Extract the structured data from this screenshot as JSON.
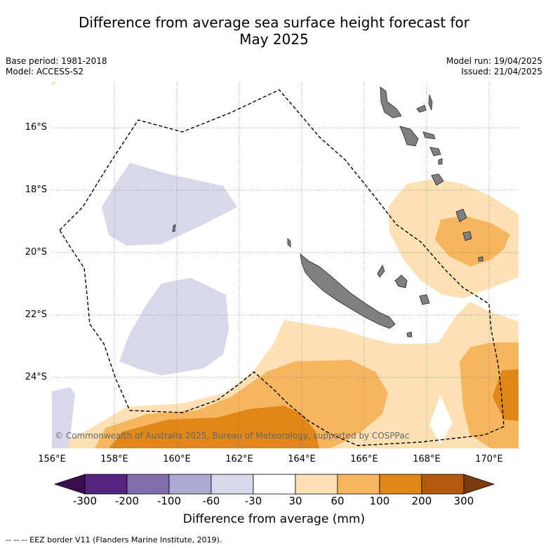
{
  "title_line1": "Difference from average sea surface height forecast for",
  "title_line2": "May 2025",
  "meta_left": {
    "base_period": "Base period: 1981-2018",
    "model": "Model: ACCESS-S2"
  },
  "meta_right": {
    "model_run": "Model run: 19/04/2025",
    "issued": "Issued: 21/04/2025"
  },
  "lat_labels": [
    "16°S",
    "18°S",
    "20°S",
    "22°S",
    "24°S"
  ],
  "lon_labels": [
    "156°E",
    "158°E",
    "160°E",
    "162°E",
    "164°E",
    "166°E",
    "168°E",
    "170°E"
  ],
  "copyright": "© Commonwealth of Australia 2025, Bureau of Meteorology, supported by COSPPac",
  "colorbar": {
    "ticks": [
      "-300",
      "-200",
      "-100",
      "-60",
      "-30",
      "30",
      "60",
      "100",
      "200",
      "300"
    ],
    "colors": [
      "#3b0f4f",
      "#55247f",
      "#7f6ead",
      "#aea9d3",
      "#d8d8ea",
      "#ffffff",
      "#fde0b4",
      "#f7b65e",
      "#e08718",
      "#b35a0e",
      "#7a3c0c"
    ],
    "label": "Difference from average (mm)"
  },
  "legend_eez": "--  --  -- EEZ border V11 (Flanders Marine Institute, 2019).",
  "map_colors": {
    "land": "#808080",
    "light_purple": "#d8d8ea",
    "light_orange": "#fde0b4",
    "mid_orange": "#f7b65e",
    "dark_orange": "#e08718"
  }
}
